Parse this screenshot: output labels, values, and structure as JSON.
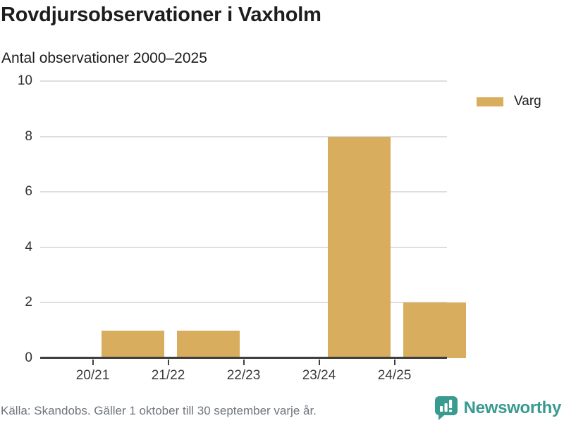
{
  "header": {
    "title": "Rovdjursobservationer i Vaxholm",
    "subtitle": "Antal observationer 2000–2025"
  },
  "chart_data": {
    "type": "bar",
    "title": "Rovdjursobservationer i Vaxholm",
    "subtitle": "Antal observationer 2000–2025",
    "categories": [
      "20/21",
      "21/22",
      "22/23",
      "23/24",
      "24/25"
    ],
    "series": [
      {
        "name": "Varg",
        "color": "#d9ad5e",
        "values": [
          1,
          1,
          0,
          8,
          2
        ]
      }
    ],
    "xlabel": "",
    "ylabel": "",
    "ylim": [
      0,
      10
    ],
    "yticks": [
      0,
      2,
      4,
      6,
      8,
      10
    ],
    "grid": true,
    "legend_position": "top-right"
  },
  "legend": {
    "items": [
      {
        "label": "Varg",
        "color": "#d9ad5e"
      }
    ]
  },
  "footer": {
    "source": "Källa: Skandobs. Gäller 1 oktober till 30 september varje år.",
    "brand_name": "Newsworthy"
  },
  "colors": {
    "bar": "#d9ad5e",
    "gridline": "#dedede",
    "axis": "#3f3f3f",
    "text": "#1d1d1b",
    "tick_text": "#333333",
    "muted_text": "#70757c",
    "brand_teal": "#399a90"
  },
  "icons": {
    "brand_icon": "bar-chart-speech-bubble-icon"
  }
}
